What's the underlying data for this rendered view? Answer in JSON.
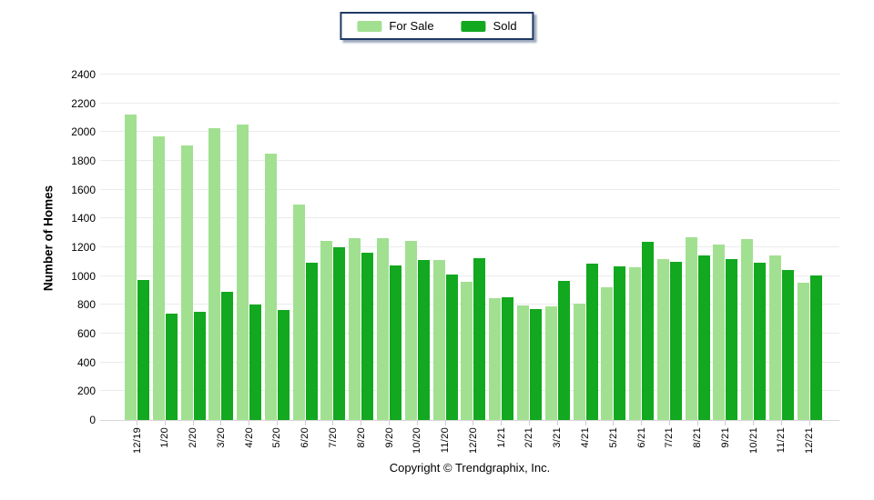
{
  "legend": {
    "position": "top-center"
  },
  "footer": {
    "copyright": "Copyright © Trendgraphix, Inc."
  },
  "colors": {
    "for_sale": "#A2E091",
    "sold": "#12A81F",
    "legend_border": "#1F3A63",
    "gridline": "#EBEBEB",
    "axis_line": "#D6D6D6",
    "background": "#FFFFFF"
  },
  "chart_data": {
    "type": "bar",
    "title": "",
    "xlabel": "",
    "ylabel": "Number of Homes",
    "ylim": [
      0,
      2400
    ],
    "ytick_step": 200,
    "ytick_labels": [
      0,
      200,
      400,
      600,
      800,
      1000,
      1200,
      1400,
      1600,
      1800,
      2000,
      2200,
      2400
    ],
    "grid": true,
    "legend_position": "top-center",
    "categories": [
      "12/19",
      "1/20",
      "2/20",
      "3/20",
      "4/20",
      "5/20",
      "6/20",
      "7/20",
      "8/20",
      "9/20",
      "10/20",
      "11/20",
      "12/20",
      "1/21",
      "2/21",
      "3/21",
      "4/21",
      "5/21",
      "6/21",
      "7/21",
      "8/21",
      "9/21",
      "10/21",
      "11/21",
      "12/21"
    ],
    "series": [
      {
        "name": "For Sale",
        "color": "#A2E091",
        "values": [
          2125,
          1970,
          1910,
          2030,
          2055,
          1850,
          1495,
          1245,
          1265,
          1260,
          1245,
          1110,
          960,
          845,
          795,
          790,
          810,
          925,
          1060,
          1120,
          1270,
          1220,
          1255,
          1145,
          955
        ]
      },
      {
        "name": "Sold",
        "color": "#12A81F",
        "values": [
          970,
          740,
          750,
          890,
          800,
          765,
          1095,
          1200,
          1165,
          1075,
          1110,
          1010,
          1125,
          850,
          770,
          965,
          1085,
          1065,
          1235,
          1100,
          1140,
          1120,
          1090,
          1040,
          1005
        ]
      }
    ]
  }
}
